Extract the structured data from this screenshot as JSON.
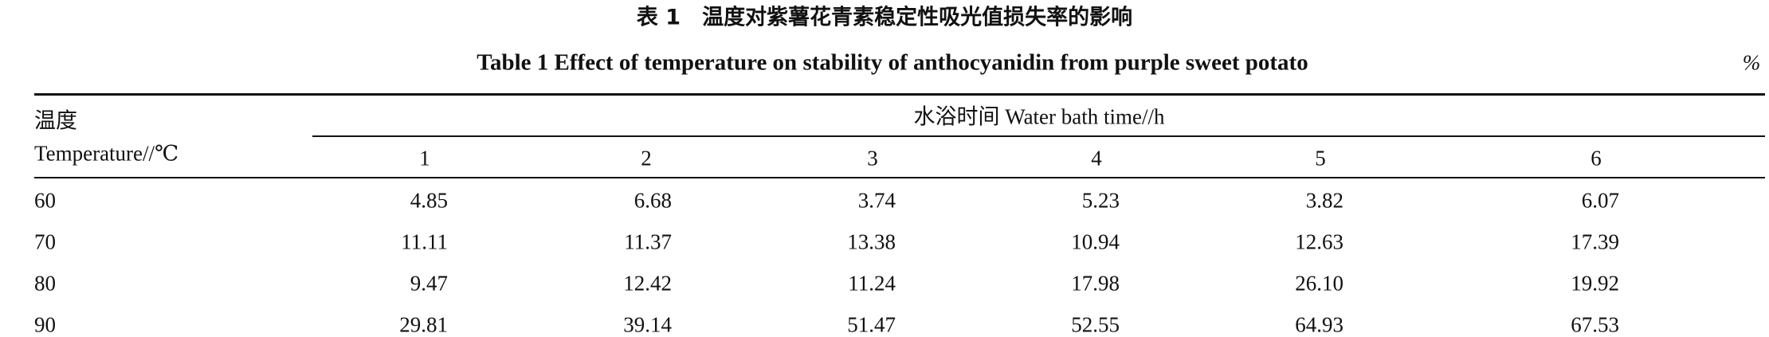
{
  "caption": {
    "zh": "表 1　温度对紫薯花青素稳定性吸光值损失率的影响",
    "en": "Table 1   Effect of temperature on stability of anthocyanidin from purple sweet potato",
    "unit": "%"
  },
  "table": {
    "row_header": {
      "zh": "温度",
      "en": "Temperature//℃"
    },
    "group_header": "水浴时间 Water bath time//h",
    "columns": [
      "1",
      "2",
      "3",
      "4",
      "5",
      "6"
    ],
    "rows": [
      [
        "60",
        "4.85",
        "6.68",
        "3.74",
        "5.23",
        "3.82",
        "6.07"
      ],
      [
        "70",
        "11.11",
        "11.37",
        "13.38",
        "10.94",
        "12.63",
        "17.39"
      ],
      [
        "80",
        "9.47",
        "12.42",
        "11.24",
        "17.98",
        "26.10",
        "19.92"
      ],
      [
        "90",
        "29.81",
        "39.14",
        "51.47",
        "52.55",
        "64.93",
        "67.53"
      ]
    ]
  }
}
